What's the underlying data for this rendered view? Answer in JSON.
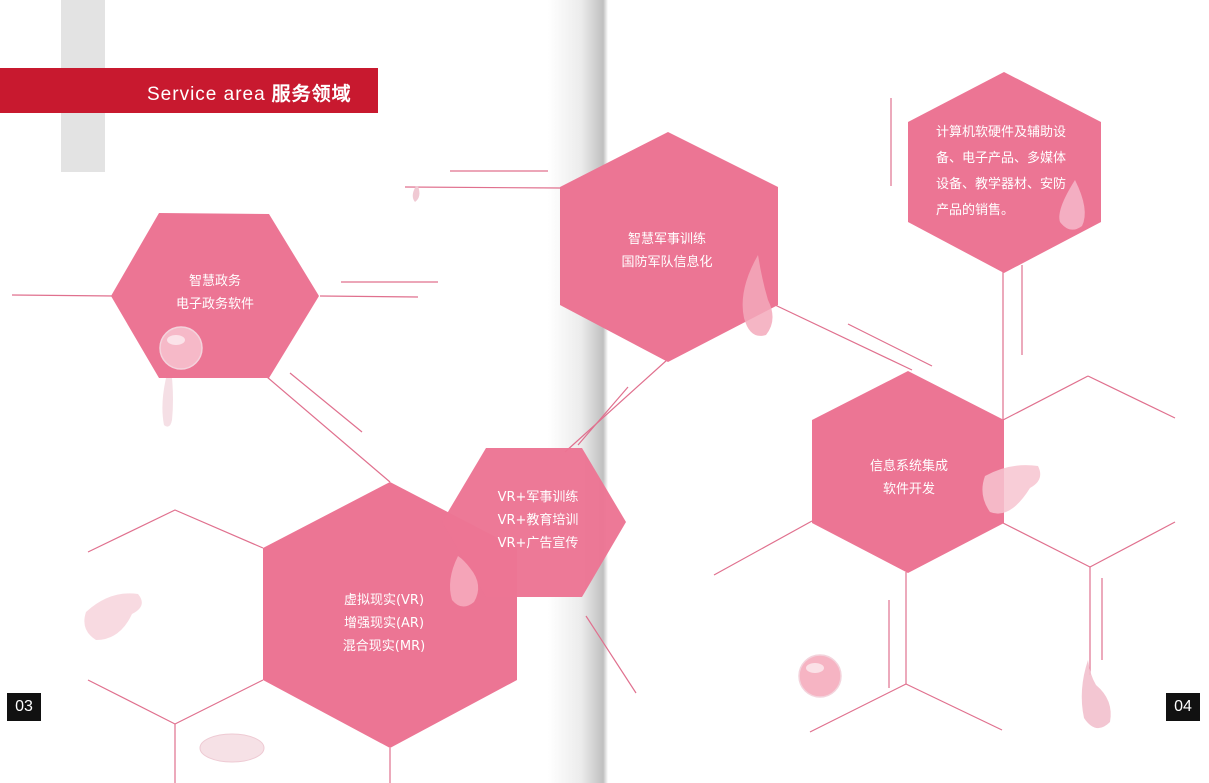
{
  "header": {
    "title_en": "Service area",
    "title_zh": "服务领域"
  },
  "colors": {
    "accent": "#c8192f",
    "hexagon": "#ec7594",
    "line": "#e0708e"
  },
  "services": {
    "gov": {
      "line1": "智慧政务",
      "line2": "电子政务软件"
    },
    "military": {
      "line1": "智慧军事训练",
      "line2": "国防军队信息化"
    },
    "vr": {
      "line1": "VR+军事训练",
      "line2": "VR+教育培训",
      "line3": "VR+广告宣传"
    },
    "xr": {
      "line1": "虚拟现实(VR)",
      "line2": "增强现实(AR)",
      "line3": "混合现实(MR)"
    },
    "integration": {
      "line1": "信息系统集成",
      "line2": "软件开发"
    },
    "sales": {
      "text": "计算机软硬件及辅助设备、电子产品、多媒体设备、教学器材、安防产品的销售。"
    }
  },
  "pages": {
    "left": "03",
    "right": "04"
  }
}
